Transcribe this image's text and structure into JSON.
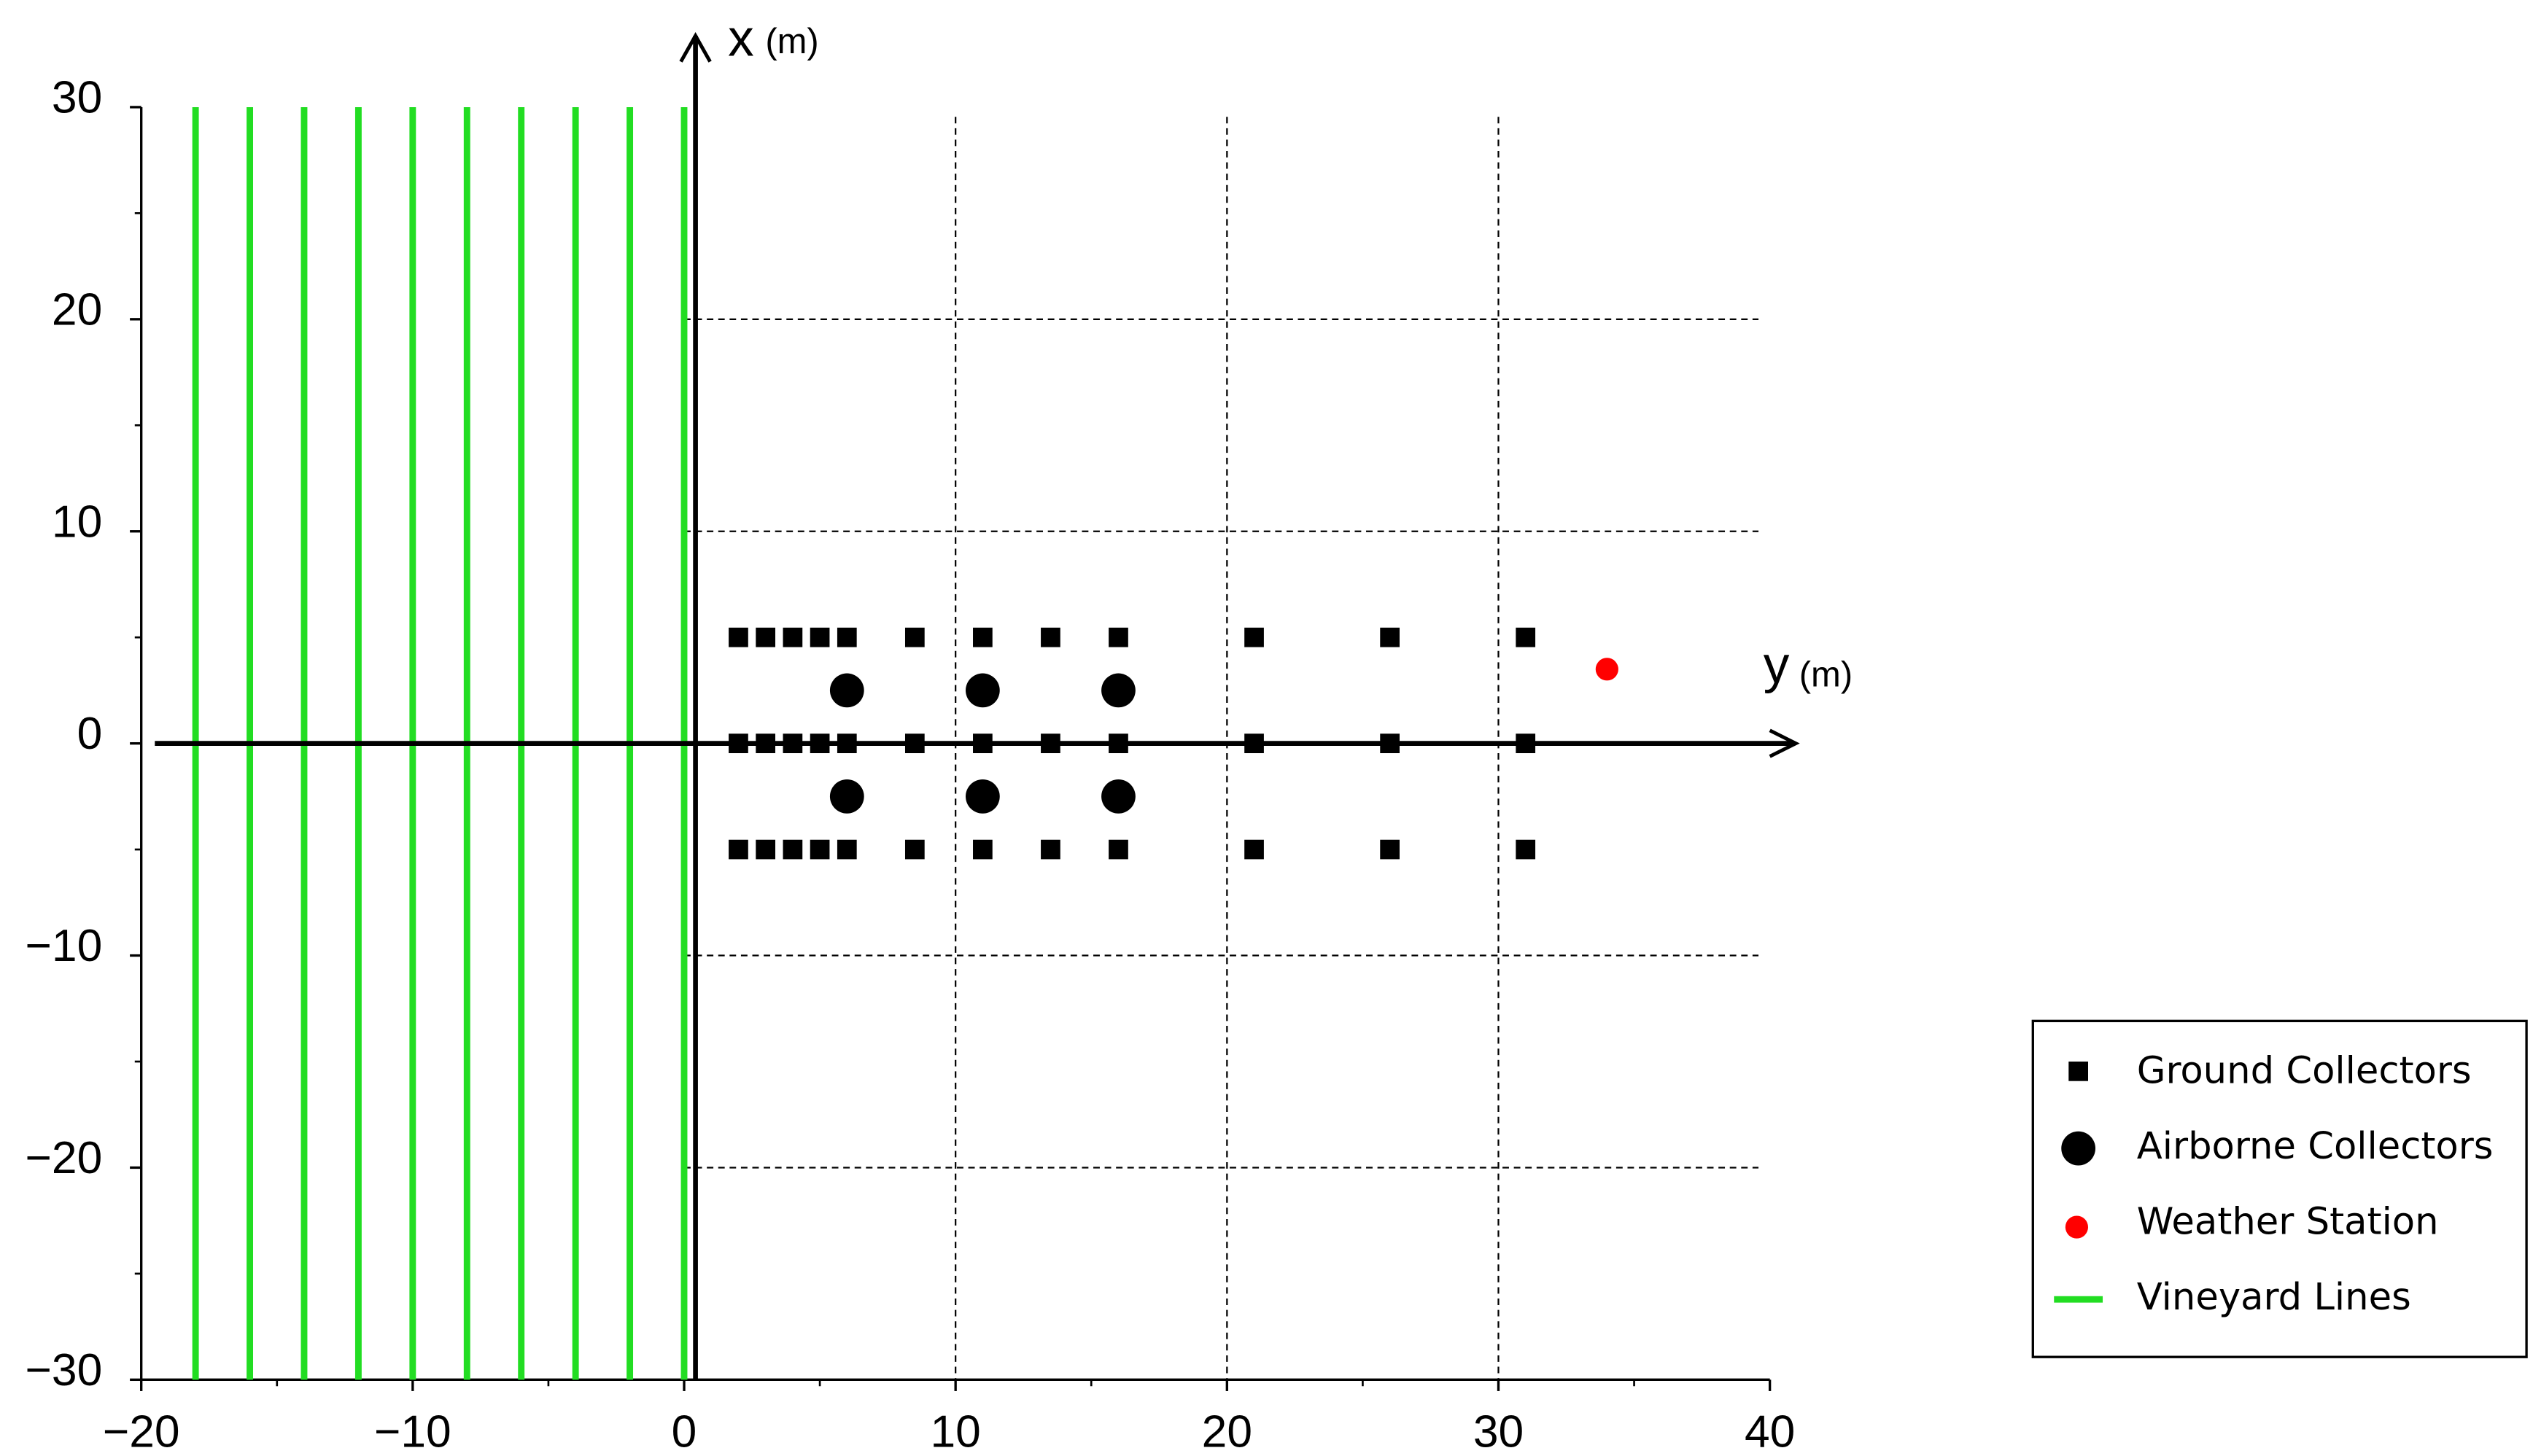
{
  "chart_data": {
    "type": "scatter",
    "x_axis_label": "y",
    "x_axis_unit": "(m)",
    "y_axis_label": "x",
    "y_axis_unit": "(m)",
    "xlim": [
      -20,
      40
    ],
    "ylim": [
      -30,
      30
    ],
    "xticks": [
      {
        "value": -20,
        "label": "−20"
      },
      {
        "value": -10,
        "label": "−10"
      },
      0,
      10,
      20,
      30,
      40
    ],
    "yticks": [
      {
        "value": -30,
        "label": "−30"
      },
      {
        "value": -20,
        "label": "−20"
      },
      {
        "value": -10,
        "label": "−10"
      },
      0,
      10,
      20,
      30
    ],
    "grid": true,
    "legend": "lower right",
    "series": [
      {
        "name": "Ground Collectors",
        "color": "#000000",
        "marker": "square",
        "x": [
          2,
          3,
          4,
          5,
          6,
          8.5,
          11,
          13.5,
          16,
          21,
          26,
          31,
          2,
          3,
          4,
          5,
          6,
          8.5,
          11,
          13.5,
          16,
          21,
          26,
          31,
          2,
          3,
          4,
          5,
          6,
          8.5,
          11,
          13.5,
          16,
          21,
          26,
          31
        ],
        "values": [
          5,
          5,
          5,
          5,
          5,
          5,
          5,
          5,
          5,
          5,
          5,
          5,
          0,
          0,
          0,
          0,
          0,
          0,
          0,
          0,
          0,
          0,
          0,
          0,
          -5,
          -5,
          -5,
          -5,
          -5,
          -5,
          -5,
          -5,
          -5,
          -5,
          -5,
          -5
        ]
      },
      {
        "name": "Airborne Collectors",
        "color": "#000000",
        "marker": "circle",
        "x": [
          6,
          11,
          16,
          6,
          11,
          16
        ],
        "values": [
          2.5,
          2.5,
          2.5,
          -2.5,
          -2.5,
          -2.5
        ]
      },
      {
        "name": "Weather Station",
        "color": "#ff0000",
        "marker": "dot",
        "x": [
          34
        ],
        "values": [
          3.5
        ]
      },
      {
        "name": "Vineyard Lines",
        "color": "#22dd22",
        "marker": "vline",
        "x": [
          -18,
          -16,
          -14,
          -12,
          -10,
          -8,
          -6,
          -4,
          -2,
          0
        ],
        "span": [
          -30,
          30
        ]
      }
    ]
  }
}
